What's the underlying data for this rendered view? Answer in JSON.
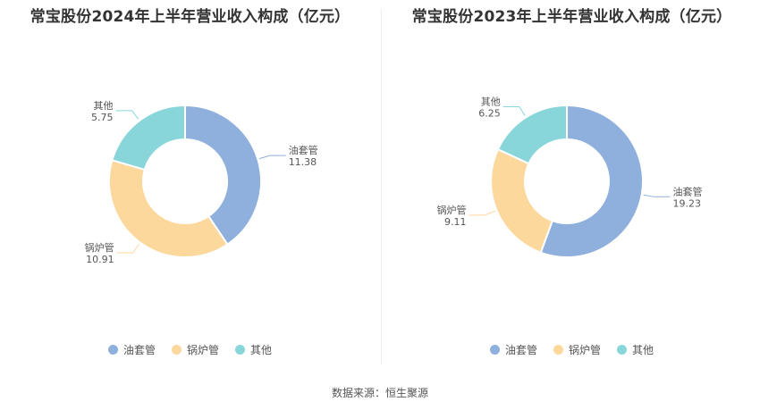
{
  "colors": {
    "oil": "#8fafdc",
    "boiler": "#fdd89d",
    "other": "#88d6da",
    "leader_text": "#555555"
  },
  "chart_data": [
    {
      "type": "pie",
      "title": "常宝股份2024年上半年营业收入构成（亿元）",
      "categories": [
        "油套管",
        "锅炉管",
        "其他"
      ],
      "values": [
        11.38,
        10.91,
        5.75
      ],
      "value_labels": [
        "11.38",
        "10.91",
        "5.75"
      ],
      "legend": "bottom"
    },
    {
      "type": "pie",
      "title": "常宝股份2023年上半年营业收入构成（亿元）",
      "categories": [
        "油套管",
        "锅炉管",
        "其他"
      ],
      "values": [
        19.23,
        9.11,
        6.25
      ],
      "value_labels": [
        "19.23",
        "9.11",
        "6.25"
      ],
      "legend": "bottom"
    }
  ],
  "footer": {
    "source": "数据来源：恒生聚源"
  }
}
